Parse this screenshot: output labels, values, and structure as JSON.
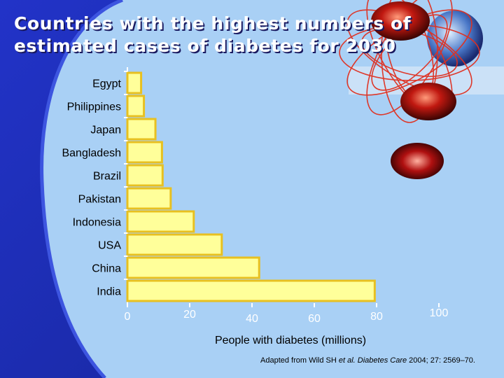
{
  "slide": {
    "title_line1": "Countries with the highest numbers of",
    "title_line2": "estimated cases of diabetes for 2030",
    "source_prefix": "Adapted from Wild SH ",
    "source_etal": "et al.",
    "source_journal": " Diabetes Care",
    "source_suffix": " 2004; 27: 2569–70.",
    "colors": {
      "background_blue": "#1a2aa8",
      "panel_light_blue": "#a9d0f5",
      "bar_fill": "#ffff9a",
      "bar_border": "#e8c020"
    }
  },
  "chart_data": {
    "type": "bar",
    "orientation": "horizontal",
    "categories": [
      "Egypt",
      "Philippines",
      "Japan",
      "Bangladesh",
      "Brazil",
      "Pakistan",
      "Indonesia",
      "USA",
      "China",
      "India"
    ],
    "values": [
      4.4,
      5.3,
      9.0,
      11.1,
      11.3,
      13.9,
      21.3,
      30.3,
      42.3,
      79.4
    ],
    "xticks": [
      0,
      20,
      40,
      60,
      80,
      100
    ],
    "xlim": [
      0,
      100
    ],
    "xlabel": "People with diabetes (millions)",
    "grid": false,
    "legend": "none"
  }
}
